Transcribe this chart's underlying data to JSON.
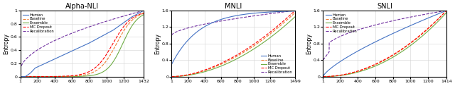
{
  "panels": [
    {
      "title": "Alpha-NLI",
      "n_samples": 1432,
      "x_max": 1432,
      "x_ticks": [
        1,
        200,
        400,
        600,
        800,
        1000,
        1200,
        1432
      ],
      "y_max": 1.0,
      "y_ticks": [
        0.0,
        0.2,
        0.4,
        0.6,
        0.8,
        1.0
      ],
      "legend_loc": "upper left"
    },
    {
      "title": "MNLI",
      "n_samples": 1499,
      "x_max": 1499,
      "x_ticks": [
        1,
        200,
        400,
        600,
        800,
        1000,
        1200,
        1499
      ],
      "y_max": 1.6,
      "y_ticks": [
        0.0,
        0.4,
        0.8,
        1.2,
        1.6
      ],
      "legend_loc": "lower right"
    },
    {
      "title": "SNLI",
      "n_samples": 1414,
      "x_max": 1414,
      "x_ticks": [
        1,
        200,
        400,
        600,
        800,
        1000,
        1200,
        1414
      ],
      "y_max": 1.6,
      "y_ticks": [
        0.0,
        0.4,
        0.8,
        1.2,
        1.6
      ],
      "legend_loc": "upper left"
    }
  ],
  "line_colors": {
    "Human": "#4472C4",
    "Baseline": "#ED7D31",
    "Ensemble": "#70AD47",
    "MC Dropout": "#FF0000",
    "Recalibration": "#7030A0"
  },
  "line_styles": {
    "Human": "-",
    "Baseline": "--",
    "Ensemble": "-",
    "MC Dropout": "--",
    "Recalibration": "--"
  },
  "series_names": [
    "Human",
    "Baseline",
    "Ensemble",
    "MC Dropout",
    "Recalibration"
  ],
  "legend_order": [
    "Human",
    "Baseline",
    "Ensemble",
    "MC Dropout",
    "Recalibration"
  ]
}
